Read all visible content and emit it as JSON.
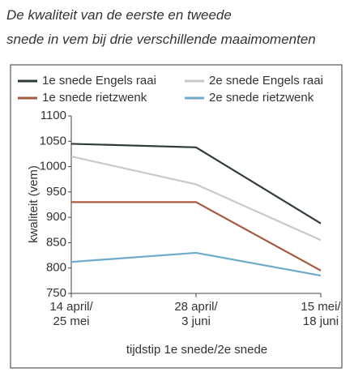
{
  "chart_data": {
    "type": "line",
    "title": [
      "De kwaliteit van de eerste en tweede",
      "snede in vem bij drie verschillende maaimomenten"
    ],
    "x_label": "tijdstip 1e snede/2e snede",
    "y_label": "kwaliteit (vem)",
    "categories": [
      [
        "14 april/",
        "25 mei"
      ],
      [
        "28 april/",
        "3 juni"
      ],
      [
        "15 mei/",
        "18 juni"
      ]
    ],
    "series": [
      {
        "name": "1e snede Engels raai",
        "color": "#2e3b36",
        "values": [
          1045,
          1038,
          888
        ]
      },
      {
        "name": "2e snede Engels raai",
        "color": "#c9c9c9",
        "values": [
          1020,
          965,
          855
        ]
      },
      {
        "name": "1e snede rietzwenk",
        "color": "#a65a3e",
        "values": [
          930,
          930,
          795
        ]
      },
      {
        "name": "2e snede rietzwenk",
        "color": "#6eaacb",
        "values": [
          812,
          830,
          785
        ]
      }
    ],
    "ylim": [
      750,
      1100
    ],
    "yticks": [
      750,
      800,
      850,
      900,
      950,
      1000,
      1050,
      1100
    ]
  }
}
